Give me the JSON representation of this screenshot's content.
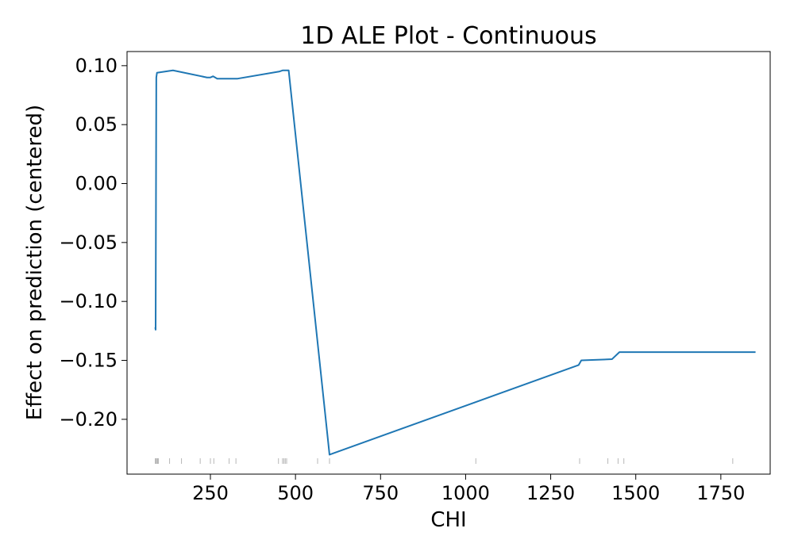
{
  "chart_data": {
    "type": "line",
    "title": "1D ALE Plot - Continuous",
    "xlabel": "CHI",
    "ylabel": "Effect on prediction (centered)",
    "xlim": [
      5,
      1895
    ],
    "ylim": [
      -0.2465,
      0.112
    ],
    "x_ticks": [
      250,
      500,
      750,
      1000,
      1250,
      1500,
      1750
    ],
    "x_tick_labels": [
      "250",
      "500",
      "750",
      "1000",
      "1250",
      "1500",
      "1750"
    ],
    "y_ticks": [
      0.1,
      0.05,
      0.0,
      -0.05,
      -0.1,
      -0.15,
      -0.2
    ],
    "y_tick_labels": [
      "0.10",
      "0.05",
      "0.00",
      "−0.05",
      "−0.10",
      "−0.15",
      "−0.20"
    ],
    "grid": false,
    "line_color": "#1f77b4",
    "rug_color": "#999999",
    "series": [
      {
        "x": [
          88,
          89,
          91,
          93,
          140,
          240,
          250,
          258,
          270,
          330,
          452,
          462,
          480,
          600,
          1332,
          1340,
          1430,
          1452,
          1462,
          1852
        ],
        "y": [
          -0.122,
          -0.124,
          0.09,
          0.094,
          0.096,
          0.09,
          0.09,
          0.091,
          0.089,
          0.089,
          0.095,
          0.096,
          0.096,
          -0.23,
          -0.154,
          -0.15,
          -0.149,
          -0.143,
          -0.143,
          -0.143
        ]
      }
    ],
    "rug": [
      88,
      90,
      93,
      95,
      97,
      130,
      165,
      220,
      250,
      260,
      305,
      325,
      450,
      462,
      466,
      470,
      474,
      565,
      600,
      1030,
      1335,
      1418,
      1448,
      1465,
      1785
    ]
  }
}
